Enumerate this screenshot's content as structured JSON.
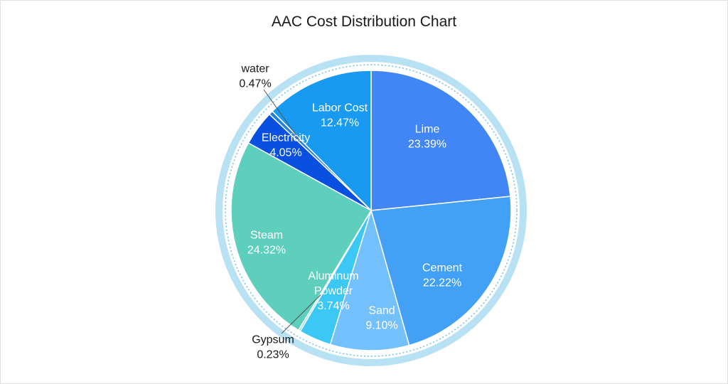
{
  "chart_data": {
    "type": "pie",
    "title": "AAC Cost Distribution Chart",
    "slices": [
      {
        "label": "Lime",
        "percent_label": "23.39%",
        "value": 23.39,
        "color": "#4285f4"
      },
      {
        "label": "Cement",
        "percent_label": "22.22%",
        "value": 22.22,
        "color": "#42a0f5"
      },
      {
        "label": "Sand",
        "percent_label": "9.10%",
        "value": 9.1,
        "color": "#74c0fc"
      },
      {
        "label": "Aluminum Powder",
        "label_lines": [
          "Aluminum",
          "Powder"
        ],
        "percent_label": "3.74%",
        "value": 3.74,
        "color": "#3cc8f5"
      },
      {
        "label": "Gypsum",
        "percent_label": "0.23%",
        "value": 0.23,
        "color": "#8ee6c7"
      },
      {
        "label": "Steam",
        "percent_label": "24.32%",
        "value": 24.32,
        "color": "#5dcfbc"
      },
      {
        "label": "Electricity",
        "percent_label": "4.05%",
        "value": 4.05,
        "color": "#0a50e0"
      },
      {
        "label": "water",
        "percent_label": "0.47%",
        "value": 0.47,
        "color": "#1e7fe0"
      },
      {
        "label": "Labor Cost",
        "percent_label": "12.47%",
        "value": 12.47,
        "color": "#179af0"
      }
    ],
    "start_angle_deg": 0,
    "direction": "clockwise",
    "legend": "none",
    "ring_color": "#b8e2f4"
  }
}
